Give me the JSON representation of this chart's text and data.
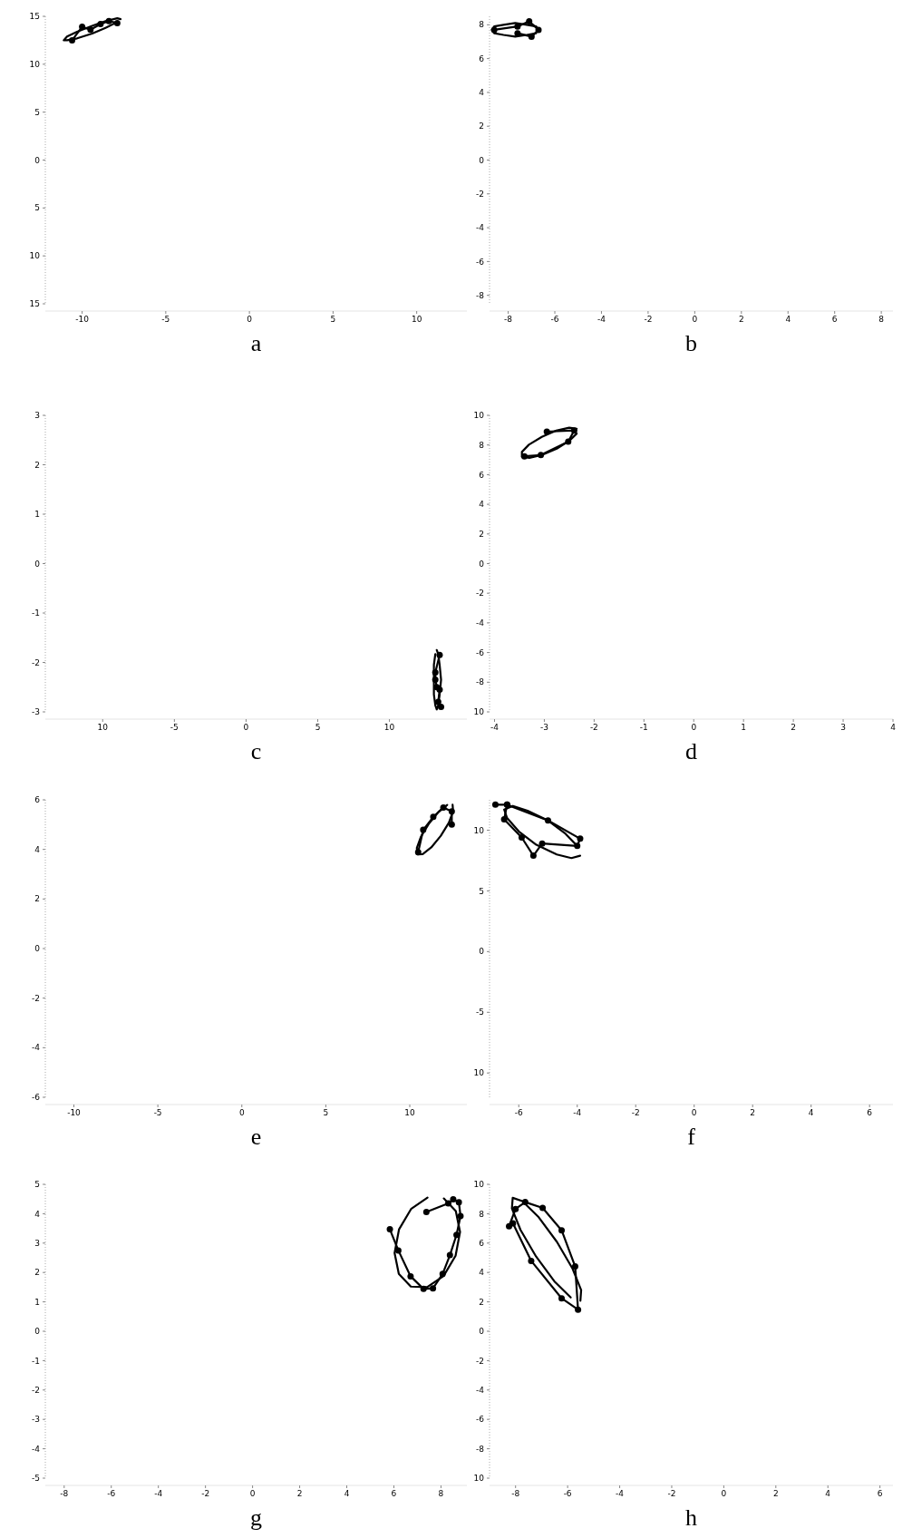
{
  "chart_data": [
    {
      "type": "line",
      "xlabel": "a",
      "marker": "circle",
      "xlim": [
        -12.2,
        13
      ],
      "ylim": [
        -15,
        15
      ],
      "xticks": [
        -10,
        -5,
        0,
        5,
        10
      ],
      "yticks": [
        15,
        10,
        5,
        0,
        {
          "value": -5,
          "label": "5"
        },
        {
          "value": -10,
          "label": "10"
        },
        {
          "value": -15,
          "label": "15"
        }
      ],
      "series": [
        {
          "type": "line",
          "color": "#000000",
          "x": [
            -10.6,
            -10.0,
            -9.5,
            -8.9,
            -8.4,
            -7.9
          ],
          "values": [
            12.5,
            13.9,
            13.6,
            14.2,
            14.5,
            14.3
          ]
        },
        {
          "type": "line",
          "marker": "none",
          "color": "#000000",
          "x": [
            -7.7,
            -7.9,
            -8.6,
            -9.4,
            -10.3,
            -10.9,
            -11.1,
            -10.9,
            -10.3,
            -9.4,
            -8.6,
            -7.9
          ],
          "values": [
            14.7,
            14.8,
            14.5,
            14.0,
            13.4,
            12.9,
            12.5,
            12.5,
            12.7,
            13.2,
            13.8,
            14.4
          ]
        }
      ]
    },
    {
      "type": "line",
      "xlabel": "b",
      "marker": "circle",
      "xlim": [
        -8.8,
        8.5
      ],
      "ylim": [
        -8.5,
        8.5
      ],
      "xticks": [
        -8,
        -6,
        -4,
        -2,
        0,
        2,
        4,
        6,
        8
      ],
      "yticks": [
        8,
        6,
        4,
        2,
        0,
        -2,
        -4,
        -6,
        -8
      ],
      "series": [
        {
          "type": "line",
          "color": "#000000",
          "x": [
            -8.6,
            -7.6,
            -7.1,
            -6.7,
            -7.0,
            -7.6
          ],
          "values": [
            7.7,
            7.9,
            8.2,
            7.7,
            7.3,
            7.5
          ]
        },
        {
          "type": "line",
          "marker": "none",
          "color": "#000000",
          "x": [
            -6.7,
            -6.8,
            -7.2,
            -7.7,
            -8.2,
            -8.6,
            -8.7,
            -8.6,
            -8.2,
            -7.7,
            -7.2,
            -6.8
          ],
          "values": [
            7.7,
            7.9,
            8.0,
            8.1,
            8.0,
            7.9,
            7.7,
            7.5,
            7.4,
            7.3,
            7.4,
            7.5
          ]
        }
      ]
    },
    {
      "type": "line",
      "xlabel": "c",
      "marker": "circle",
      "xlim": [
        -14,
        15.4
      ],
      "ylim": [
        -3,
        3
      ],
      "xticks": [
        {
          "value": -10,
          "label": "10"
        },
        -5,
        0,
        5,
        10
      ],
      "yticks": [
        3,
        2,
        1,
        0,
        -1,
        -2,
        -3
      ],
      "series": [
        {
          "type": "line",
          "color": "#000000",
          "x": [
            13.5,
            13.2,
            13.2,
            13.3,
            13.5,
            13.4,
            13.6
          ],
          "values": [
            -1.85,
            -2.2,
            -2.35,
            -2.5,
            -2.55,
            -2.8,
            -2.9
          ]
        },
        {
          "type": "line",
          "marker": "none",
          "color": "#000000",
          "x": [
            13.3,
            13.4,
            13.5,
            13.6,
            13.5,
            13.4,
            13.3,
            13.2,
            13.1,
            13.1,
            13.1,
            13.2
          ],
          "values": [
            -1.75,
            -1.83,
            -2.05,
            -2.35,
            -2.65,
            -2.87,
            -2.95,
            -2.87,
            -2.65,
            -2.35,
            -2.05,
            -1.83
          ]
        }
      ]
    },
    {
      "type": "line",
      "xlabel": "d",
      "marker": "circle",
      "xlim": [
        -4.1,
        4
      ],
      "ylim": [
        -10,
        10
      ],
      "xticks": [
        -4,
        -3,
        -2,
        -1,
        0,
        1,
        2,
        3,
        4
      ],
      "yticks": [
        10,
        8,
        6,
        4,
        2,
        0,
        -2,
        -4,
        -6,
        -8,
        {
          "value": -10,
          "label": "10"
        }
      ],
      "series": [
        {
          "type": "line",
          "color": "#000000",
          "x": [
            -3.4,
            -3.07,
            -2.52,
            -2.4,
            -2.95
          ],
          "values": [
            7.24,
            7.32,
            8.22,
            8.98,
            8.9
          ]
        },
        {
          "type": "line",
          "marker": "none",
          "color": "#000000",
          "x": [
            -2.35,
            -2.5,
            -2.76,
            -3.05,
            -3.31,
            -3.45,
            -3.45,
            -3.3,
            -3.05,
            -2.75,
            -2.5,
            -2.35
          ],
          "values": [
            9.1,
            9.17,
            8.97,
            8.55,
            8.02,
            7.53,
            7.2,
            7.13,
            7.33,
            7.75,
            8.28,
            8.77
          ]
        }
      ]
    },
    {
      "type": "line",
      "xlabel": "e",
      "marker": "circle",
      "xlim": [
        -11.7,
        13.4
      ],
      "ylim": [
        -6,
        6
      ],
      "xticks": [
        -10,
        -5,
        0,
        5,
        10
      ],
      "yticks": [
        6,
        4,
        2,
        0,
        -2,
        -4,
        -6
      ],
      "series": [
        {
          "type": "line",
          "color": "#000000",
          "x": [
            10.5,
            10.8,
            11.4,
            12.0,
            12.5,
            12.5
          ],
          "values": [
            3.89,
            4.79,
            5.31,
            5.69,
            5.53,
            5.0
          ]
        },
        {
          "type": "line",
          "marker": "none",
          "color": "#000000",
          "x": [
            12.55,
            12.58,
            12.33,
            11.85,
            11.28,
            10.77,
            10.45,
            10.42,
            10.67,
            11.15,
            11.72,
            12.23
          ],
          "values": [
            5.8,
            5.54,
            5.08,
            4.55,
            4.08,
            3.81,
            3.8,
            4.06,
            4.52,
            5.05,
            5.52,
            5.79
          ]
        }
      ]
    },
    {
      "type": "line",
      "xlabel": "f",
      "marker": "circle",
      "xlim": [
        -7,
        6.8
      ],
      "ylim": [
        -12,
        12.5
      ],
      "xticks": [
        -6,
        -4,
        -2,
        0,
        2,
        4,
        6
      ],
      "yticks": [
        10,
        5,
        0,
        -5,
        {
          "value": -10,
          "label": "10"
        }
      ],
      "series": [
        {
          "type": "line",
          "color": "#000000",
          "x": [
            -6.8,
            -6.4,
            -6.5,
            -5.9,
            -5.5,
            -5.2,
            -4.0,
            -3.9,
            -5.0,
            -6.4
          ],
          "values": [
            12.1,
            12.1,
            10.9,
            9.4,
            7.9,
            8.9,
            8.7,
            9.3,
            10.8,
            12.1
          ]
        },
        {
          "type": "line",
          "marker": "none",
          "color": "#000000",
          "x": [
            -3.9,
            -4.2,
            -4.7,
            -5.4,
            -6.0,
            -6.4,
            -6.5,
            -6.2,
            -5.7,
            -5.0,
            -4.4,
            -4.0
          ],
          "values": [
            7.9,
            7.7,
            8.0,
            8.8,
            9.9,
            11.0,
            11.7,
            12.0,
            11.6,
            10.8,
            9.7,
            8.7
          ]
        }
      ]
    },
    {
      "type": "line",
      "xlabel": "g",
      "marker": "circle",
      "xlim": [
        -8.8,
        9.1
      ],
      "ylim": [
        -5,
        5
      ],
      "xticks": [
        -8,
        -6,
        -4,
        -2,
        0,
        2,
        4,
        6,
        8
      ],
      "yticks": [
        5,
        4,
        3,
        2,
        1,
        0,
        -1,
        -2,
        -3,
        -4,
        -5
      ],
      "series": [
        {
          "type": "line",
          "color": "#000000",
          "x": [
            7.38,
            8.31,
            8.52,
            8.76,
            8.83,
            8.66,
            8.38,
            8.07,
            7.66,
            7.26,
            6.71,
            6.19,
            5.83
          ],
          "values": [
            4.06,
            4.35,
            4.49,
            4.39,
            3.92,
            3.28,
            2.59,
            1.95,
            1.46,
            1.44,
            1.87,
            2.75,
            3.47
          ]
        },
        {
          "type": "line",
          "marker": "none",
          "color": "#000000",
          "x": [
            8.12,
            8.63,
            8.81,
            8.62,
            8.11,
            7.41,
            6.72,
            6.21,
            6.03,
            6.22,
            6.73,
            7.43
          ],
          "values": [
            4.52,
            4.09,
            3.38,
            2.57,
            1.88,
            1.5,
            1.52,
            1.95,
            2.66,
            3.47,
            4.16,
            4.55
          ]
        }
      ]
    },
    {
      "type": "line",
      "xlabel": "h",
      "marker": "circle",
      "xlim": [
        -9,
        6.5
      ],
      "ylim": [
        -10,
        10
      ],
      "xticks": [
        -8,
        -6,
        -4,
        -2,
        0,
        2,
        4,
        6
      ],
      "yticks": [
        10,
        8,
        6,
        4,
        2,
        0,
        -2,
        -4,
        -6,
        -8,
        {
          "value": -10,
          "label": "10"
        }
      ],
      "series": [
        {
          "type": "line",
          "color": "#000000",
          "x": [
            -8.25,
            -8.0,
            -7.63,
            -6.96,
            -6.23,
            -5.71,
            -5.6,
            -6.23,
            -7.4,
            -8.1
          ],
          "values": [
            7.15,
            8.32,
            8.79,
            8.39,
            6.87,
            4.41,
            1.47,
            2.24,
            4.79,
            7.34
          ]
        },
        {
          "type": "line",
          "marker": "none",
          "color": "#000000",
          "x": [
            -5.51,
            -5.48,
            -5.81,
            -6.41,
            -7.11,
            -7.74,
            -8.11,
            -8.14,
            -7.81,
            -7.21,
            -6.51,
            -5.88
          ],
          "values": [
            2.08,
            2.8,
            4.26,
            6.08,
            7.76,
            8.86,
            9.08,
            8.36,
            6.9,
            5.08,
            3.4,
            2.3
          ]
        }
      ]
    }
  ]
}
